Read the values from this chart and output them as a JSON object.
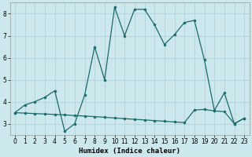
{
  "xlabel": "Humidex (Indice chaleur)",
  "x": [
    0,
    1,
    2,
    3,
    4,
    5,
    6,
    7,
    8,
    9,
    10,
    11,
    12,
    13,
    14,
    15,
    16,
    17,
    18,
    19,
    20,
    21,
    22,
    23
  ],
  "line_upper": [
    3.5,
    3.85,
    4.0,
    4.2,
    4.5,
    2.65,
    3.0,
    4.3,
    6.5,
    5.0,
    8.3,
    7.0,
    8.2,
    8.2,
    7.5,
    6.6,
    7.05,
    7.6,
    7.7,
    5.9,
    3.6,
    4.4,
    3.0,
    3.25
  ],
  "line_lower": [
    3.5,
    3.48,
    3.46,
    3.44,
    3.42,
    3.4,
    3.37,
    3.35,
    3.32,
    3.29,
    3.26,
    3.23,
    3.2,
    3.17,
    3.14,
    3.11,
    3.08,
    3.05,
    3.62,
    3.65,
    3.58,
    3.55,
    3.0,
    3.25
  ],
  "bg_color": "#cce8ec",
  "grid_color": "#aacdd4",
  "line_color": "#1a6b6b",
  "ylim": [
    2.5,
    8.5
  ],
  "xlim": [
    -0.5,
    23.5
  ],
  "yticks": [
    3,
    4,
    5,
    6,
    7,
    8
  ],
  "xticks": [
    0,
    1,
    2,
    3,
    4,
    5,
    6,
    7,
    8,
    9,
    10,
    11,
    12,
    13,
    14,
    15,
    16,
    17,
    18,
    19,
    20,
    21,
    22,
    23
  ],
  "tick_labelsize": 5.5,
  "xlabel_fontsize": 6.5
}
